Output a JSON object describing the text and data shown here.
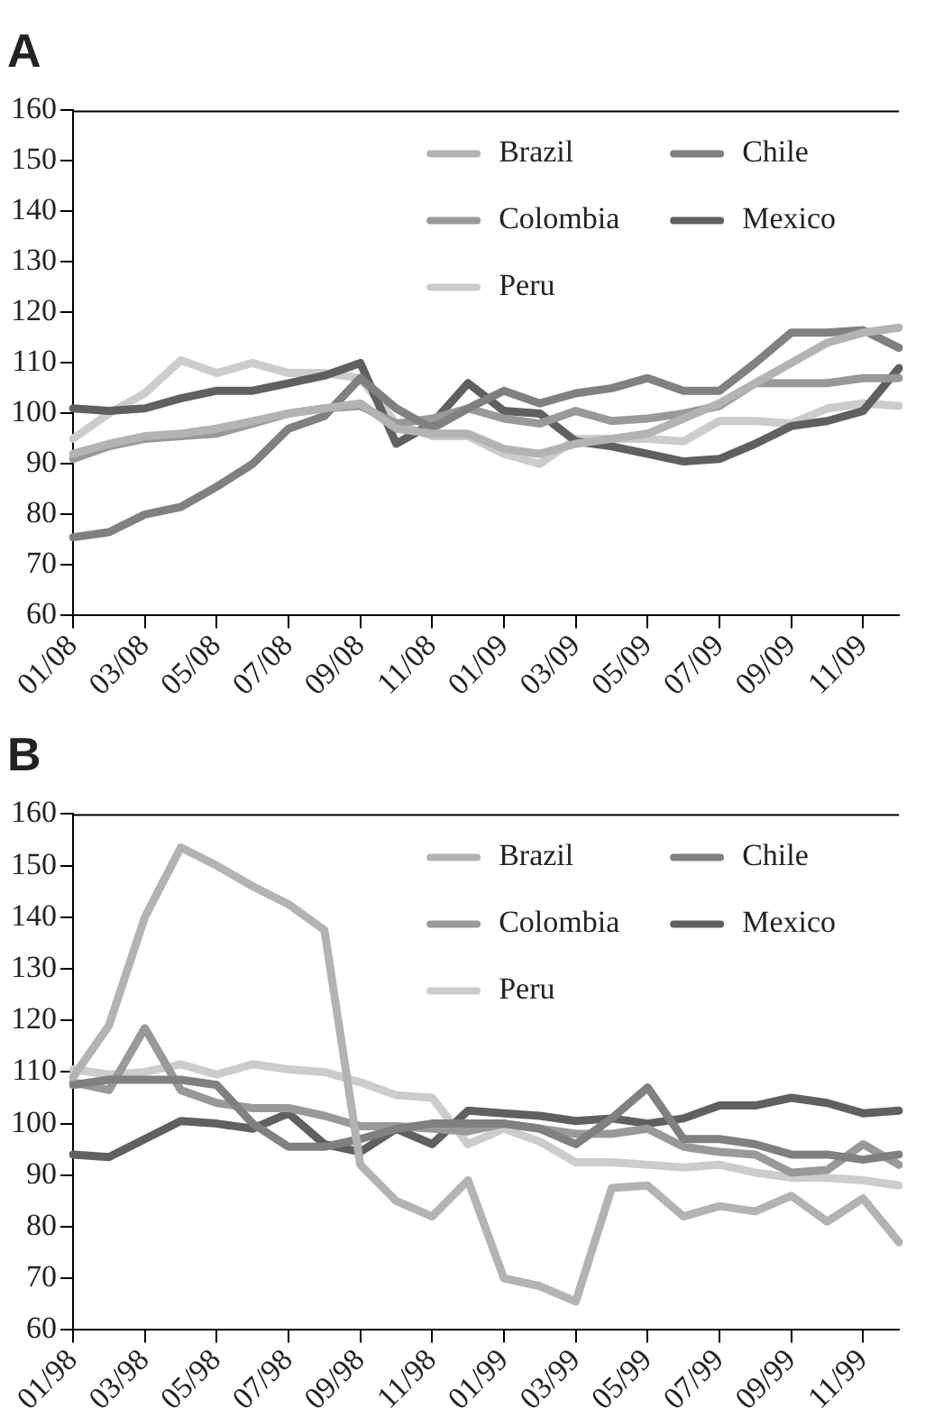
{
  "chart_data": [
    {
      "type": "line",
      "title": "A",
      "categories": [
        "01/08",
        null,
        "03/08",
        null,
        "05/08",
        null,
        "07/08",
        null,
        "09/08",
        null,
        "11/08",
        null,
        "01/09",
        null,
        "03/09",
        null,
        "05/09",
        null,
        "07/09",
        null,
        "09/09",
        null,
        "11/09",
        null
      ],
      "series": [
        {
          "name": "Brazil",
          "color": "#b3b3b3",
          "values": [
            92,
            94,
            95.5,
            96,
            97,
            98.5,
            100,
            101,
            102,
            97,
            96,
            96,
            93,
            92,
            94,
            95,
            96,
            99,
            102,
            106,
            110,
            114,
            116,
            117
          ]
        },
        {
          "name": "Chile",
          "color": "#808080",
          "values": [
            75.5,
            76.5,
            80,
            81.5,
            85.5,
            90,
            97,
            99.5,
            107,
            101,
            97,
            101,
            104.5,
            102,
            104,
            105,
            107,
            104.5,
            104.5,
            110,
            116,
            116,
            116.5,
            113
          ]
        },
        {
          "name": "Colombia",
          "color": "#999999",
          "values": [
            91,
            93.5,
            95,
            95.5,
            96,
            98,
            100,
            101,
            101.5,
            98,
            99,
            101,
            99,
            98,
            100.5,
            98.5,
            99,
            100,
            101.5,
            106,
            106,
            106,
            107,
            107
          ]
        },
        {
          "name": "Mexico",
          "color": "#606060",
          "values": [
            101,
            100.5,
            101,
            103,
            104.5,
            104.5,
            106,
            107.5,
            110,
            94,
            98,
            106,
            100.5,
            100,
            94.5,
            93.5,
            92,
            90.5,
            91,
            94,
            97.5,
            98.5,
            100.5,
            109
          ]
        },
        {
          "name": "Peru",
          "color": "#cccccc",
          "values": [
            95,
            100,
            104,
            110.5,
            108,
            110,
            108,
            108,
            107,
            98,
            95.5,
            95.5,
            92,
            90,
            95,
            95,
            95,
            94.5,
            98.5,
            98.5,
            98,
            101,
            102,
            101.5
          ]
        }
      ],
      "ylim": [
        60,
        160
      ],
      "yticks": [
        60,
        70,
        80,
        90,
        100,
        110,
        120,
        130,
        140,
        150,
        160
      ],
      "grid": false,
      "legend": "top right",
      "marker": "none",
      "line_style": "solid"
    },
    {
      "type": "line",
      "title": "B",
      "categories": [
        "01/98",
        null,
        "03/98",
        null,
        "05/98",
        null,
        "07/98",
        null,
        "09/98",
        null,
        "11/98",
        null,
        "01/99",
        null,
        "03/99",
        null,
        "05/99",
        null,
        "07/99",
        null,
        "09/99",
        null,
        "11/99",
        null
      ],
      "series": [
        {
          "name": "Brazil",
          "color": "#b3b3b3",
          "values": [
            109,
            119,
            140,
            153.5,
            150,
            146,
            142.5,
            137.5,
            92,
            85,
            82,
            89,
            70,
            68.5,
            65.5,
            87.5,
            88,
            82,
            84,
            83,
            86,
            81,
            85.5,
            77
          ]
        },
        {
          "name": "Chile",
          "color": "#808080",
          "values": [
            107.5,
            108.5,
            108.5,
            108.5,
            107.5,
            100,
            95.5,
            95.5,
            97,
            99,
            100,
            100,
            100,
            99,
            96,
            101,
            107,
            97,
            97,
            96,
            94,
            94,
            93,
            94
          ]
        },
        {
          "name": "Colombia",
          "color": "#999999",
          "values": [
            108,
            106.5,
            118.5,
            106.5,
            104,
            103,
            103,
            101.5,
            99.5,
            99.5,
            99,
            98.5,
            100,
            99,
            98,
            98,
            99,
            95.5,
            94.5,
            94,
            90.5,
            91,
            96,
            92
          ]
        },
        {
          "name": "Mexico",
          "color": "#606060",
          "values": [
            94,
            93.5,
            97,
            100.5,
            100,
            99,
            102,
            96,
            94.5,
            99,
            96,
            102.5,
            102,
            101.5,
            100.5,
            101,
            100,
            101,
            103.5,
            103.5,
            105,
            104,
            102,
            102.5
          ]
        },
        {
          "name": "Peru",
          "color": "#cccccc",
          "values": [
            110.5,
            109.5,
            110,
            111.5,
            109.5,
            111.5,
            110.5,
            110,
            108,
            105.5,
            105,
            96,
            99,
            96.5,
            92.5,
            92.5,
            92,
            91.5,
            92,
            90.5,
            89.5,
            89.5,
            89,
            88
          ]
        }
      ],
      "ylim": [
        60,
        160
      ],
      "yticks": [
        60,
        70,
        80,
        90,
        100,
        110,
        120,
        130,
        140,
        150,
        160
      ],
      "grid": false,
      "legend": "top right",
      "marker": "none",
      "line_style": "solid"
    }
  ]
}
